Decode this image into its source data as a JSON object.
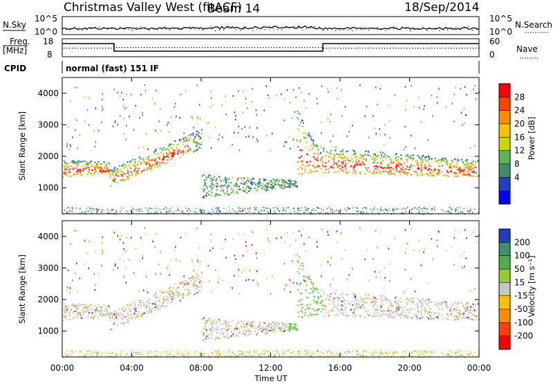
{
  "header": {
    "station": "Christmas Valley West (fitACF)",
    "beam": "Beam 14",
    "date": "18/Sep/2014"
  },
  "status_panels": {
    "nsky_label": "N.Sky",
    "nsearch_label": "N.Search",
    "noise_ticks": [
      "10^5",
      "10^0"
    ],
    "freq_label_line1": "Freq.",
    "freq_label_line2": "[MHz]",
    "freq_ticks": [
      "18",
      "8"
    ],
    "nave_label": "Nave",
    "nave_ticks": [
      "60",
      "0"
    ],
    "cpid_label": "CPID",
    "cpid_text": "normal (fast) 151 IF"
  },
  "chart_data": [
    {
      "type": "heatmap",
      "title": "",
      "xlabel": "",
      "ylabel": "Slant Range [km]",
      "x_ticks": [
        "00:00",
        "04:00",
        "08:00",
        "12:00",
        "16:00",
        "20:00",
        "00:00"
      ],
      "y_ticks": [
        "1000",
        "2000",
        "3000",
        "4000"
      ],
      "colorbar_label": "Power [dB]",
      "colorbar_ticks": [
        "28",
        "24",
        "20",
        "16",
        "12",
        "8",
        "4"
      ],
      "colorbar_colors": [
        "#ff0000",
        "#ff4000",
        "#ff8c00",
        "#ffc000",
        "#c8d800",
        "#5ab55a",
        "#3f8f6e",
        "#2040c0",
        "#0000ff"
      ],
      "xlim_hours": [
        0,
        24
      ],
      "ylim_km": [
        180,
        4500
      ],
      "bands_hours_km_approx": [
        {
          "t": [
            0.0,
            2.7
          ],
          "range_km": [
            1300,
            1800
          ],
          "power_db": 24
        },
        {
          "t": [
            2.7,
            8.0
          ],
          "range_km": [
            1100,
            2800
          ],
          "power_db": 20
        },
        {
          "t": [
            7.0,
            13.5
          ],
          "range_km": [
            700,
            1400
          ],
          "power_db": 10
        },
        {
          "t": [
            13.0,
            15.0
          ],
          "range_km": [
            1400,
            3800
          ],
          "power_db": 18
        },
        {
          "t": [
            15.0,
            24.0
          ],
          "range_km": [
            1300,
            2400
          ],
          "power_db": 22
        }
      ]
    },
    {
      "type": "heatmap",
      "title": "",
      "xlabel": "Time UT",
      "ylabel": "Slant Range [km]",
      "x_ticks": [
        "00:00",
        "04:00",
        "08:00",
        "12:00",
        "16:00",
        "20:00",
        "00:00"
      ],
      "y_ticks": [
        "1000",
        "2000",
        "3000",
        "4000"
      ],
      "colorbar_label": "Velocity [m s⁻¹]",
      "colorbar_ticks": [
        "200",
        "100",
        "50",
        "15",
        "-15",
        "-50",
        "-100",
        "-200"
      ],
      "colorbar_colors": [
        "#1f3fbf",
        "#3f8f6e",
        "#4cae4c",
        "#99cc33",
        "#c8c8c0",
        "#ffc000",
        "#ff8c00",
        "#ff4000",
        "#ff0000"
      ],
      "xlim_hours": [
        0,
        24
      ],
      "ylim_km": [
        180,
        4500
      ]
    }
  ]
}
